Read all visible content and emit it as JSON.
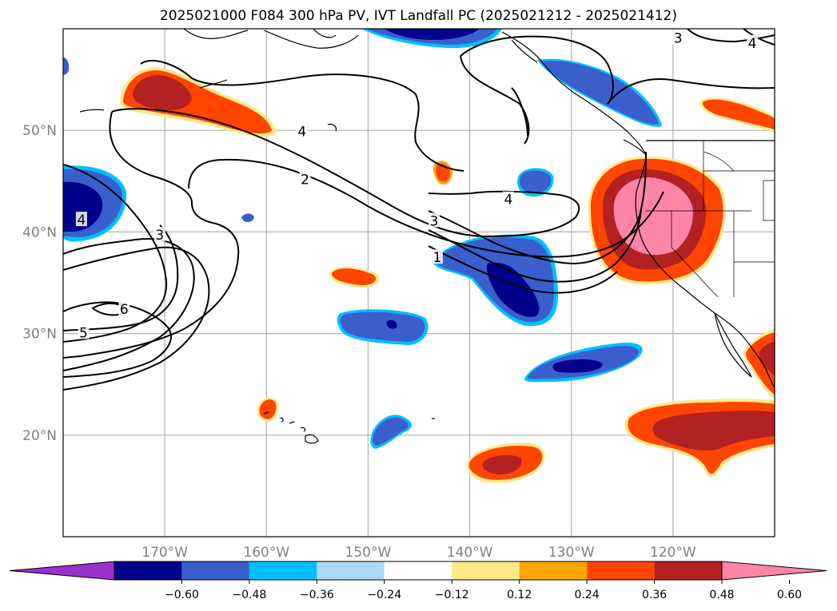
{
  "title": "2025021000 F084 300 hPa PV, IVT Landfall PC (2025021212 - 2025021412)",
  "map": {
    "lon_range": [
      -180,
      -110
    ],
    "lat_range": [
      10,
      60
    ],
    "lat_ticks": [
      {
        "label": "50°N",
        "v": 50
      },
      {
        "label": "40°N",
        "v": 40
      },
      {
        "label": "30°N",
        "v": 30
      },
      {
        "label": "20°N",
        "v": 20
      }
    ],
    "lon_ticks": [
      {
        "label": "170°W",
        "v": -170
      },
      {
        "label": "160°W",
        "v": -160
      },
      {
        "label": "150°W",
        "v": -150
      },
      {
        "label": "140°W",
        "v": -140
      },
      {
        "label": "130°W",
        "v": -130
      },
      {
        "label": "120°W",
        "v": -120
      }
    ],
    "contour_labels": [
      {
        "text": "2",
        "lon": -156.2,
        "lat": 45.2
      },
      {
        "text": "3",
        "lon": -143.5,
        "lat": 41.1
      },
      {
        "text": "4",
        "lon": -136.2,
        "lat": 43.2
      },
      {
        "text": "1",
        "lon": -143.2,
        "lat": 37.5
      },
      {
        "text": "3",
        "lon": -170.5,
        "lat": 39.7
      },
      {
        "text": "5",
        "lon": -178.0,
        "lat": 30.1
      },
      {
        "text": "6",
        "lon": -174.0,
        "lat": 32.4
      },
      {
        "text": "4",
        "lon": -178.2,
        "lat": 41.2
      },
      {
        "text": "4",
        "lon": -156.5,
        "lat": 49.9
      },
      {
        "text": "3",
        "lon": -119.5,
        "lat": 59.1
      },
      {
        "text": "4",
        "lon": -112.2,
        "lat": 58.6
      }
    ]
  },
  "colorbar": {
    "labels": [
      "−0.60",
      "−0.48",
      "−0.36",
      "−0.24",
      "−0.12",
      "0.12",
      "0.24",
      "0.36",
      "0.48",
      "0.60"
    ],
    "colors": [
      "#9932cc",
      "#00008b",
      "#3a5fcd",
      "#00bfff",
      "#add8f4",
      "#ffffff",
      "#ffe88a",
      "#ffa500",
      "#ff4500",
      "#b22222",
      "#ff85a8"
    ]
  },
  "colors": {
    "neg_strong": "#00008b",
    "neg_mid": "#3a5fcd",
    "neg_light": "#00bfff",
    "pos_light": "#ffe88a",
    "pos_orange": "#ffa500",
    "pos_red": "#ff4500",
    "pos_dark": "#b22222",
    "pos_pink": "#ff85a8"
  }
}
